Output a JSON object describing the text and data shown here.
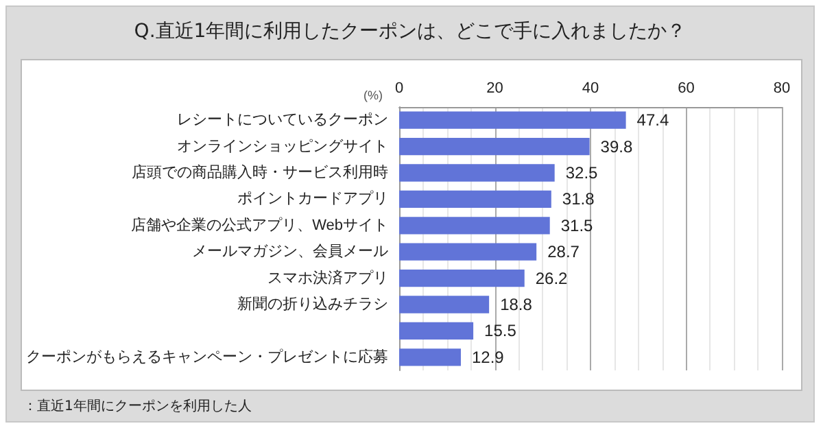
{
  "chart_data": {
    "type": "bar",
    "orientation": "horizontal",
    "title": "Q.直近1年間に利用したクーポンは、どこで手に入れましたか？",
    "xlabel": "(%)",
    "categories": [
      "レシートについているクーポン",
      "オンラインショッピングサイト",
      "店頭での商品購入時・サービス利用時",
      "ポイントカードアプリ",
      "店舗や企業の公式アプリ、Webサイト",
      "メールマガジン、会員メール",
      "スマホ決済アプリ",
      "新聞の折り込みチラシ",
      null,
      "クーポンがもらえるキャンペーン・プレゼントに応募"
    ],
    "values": [
      47.4,
      39.8,
      32.5,
      31.8,
      31.5,
      28.7,
      26.2,
      18.8,
      15.5,
      12.9
    ],
    "color": "#6174d8",
    "data_labels": true,
    "xlim": [
      0,
      80
    ],
    "xticks": [
      0,
      20,
      40,
      60,
      80
    ],
    "grid": true,
    "annotations": [
      "：直近1年間にクーポンを利用した人"
    ]
  }
}
